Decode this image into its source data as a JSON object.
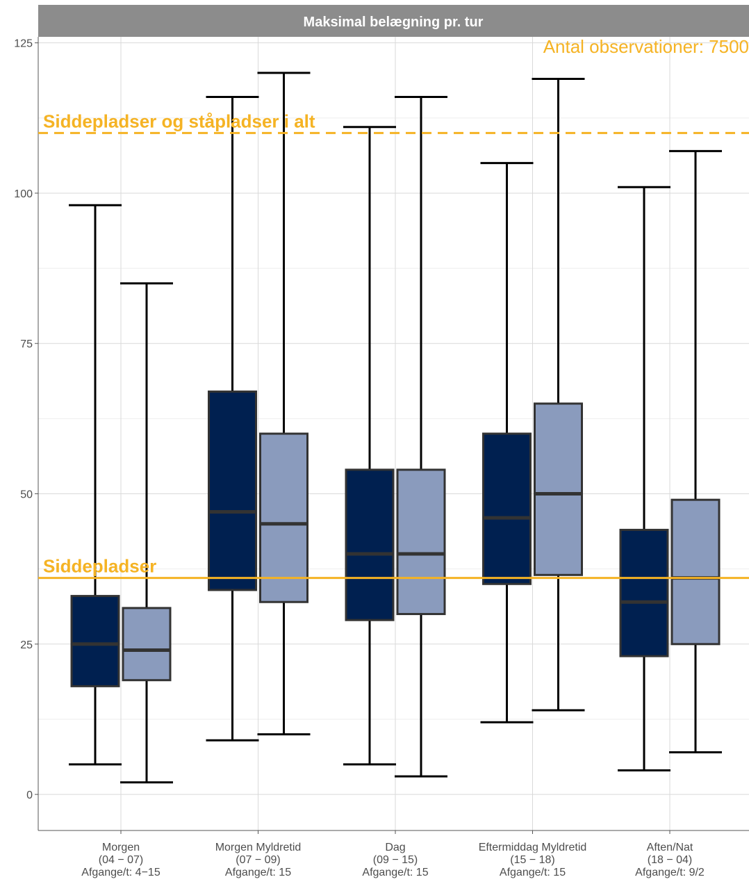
{
  "chart_data": {
    "type": "boxplot",
    "title": "Maksimal belægning pr. tur",
    "annotation": "Antal observationer: 7500",
    "ylim": [
      -6,
      126
    ],
    "y_ticks": [
      0,
      25,
      50,
      75,
      100,
      125
    ],
    "grid": true,
    "categories": [
      {
        "lines": [
          "Morgen",
          "(04 − 07)",
          "Afgange/t: 4−15"
        ]
      },
      {
        "lines": [
          "Morgen Myldretid",
          "(07 − 09)",
          "Afgange/t: 15"
        ]
      },
      {
        "lines": [
          "Dag",
          "(09 − 15)",
          "Afgange/t: 15"
        ]
      },
      {
        "lines": [
          "Eftermiddag Myldretid",
          "(15 − 18)",
          "Afgange/t: 15"
        ]
      },
      {
        "lines": [
          "Aften/Nat",
          "(18 − 04)",
          "Afgange/t: 9/2"
        ]
      }
    ],
    "series": [
      {
        "color": "#002050",
        "boxes": [
          {
            "min": 5,
            "q1": 18,
            "median": 25,
            "q3": 33,
            "max": 98
          },
          {
            "min": 9,
            "q1": 34,
            "median": 47,
            "q3": 67,
            "max": 116
          },
          {
            "min": 5,
            "q1": 29,
            "median": 40,
            "q3": 54,
            "max": 111
          },
          {
            "min": 12,
            "q1": 35,
            "median": 46,
            "q3": 60,
            "max": 105
          },
          {
            "min": 4,
            "q1": 23,
            "median": 32,
            "q3": 44,
            "max": 101
          }
        ]
      },
      {
        "color": "#8a9bbd",
        "boxes": [
          {
            "min": 2,
            "q1": 19,
            "median": 24,
            "q3": 31,
            "max": 85
          },
          {
            "min": 10,
            "q1": 32,
            "median": 45,
            "q3": 60,
            "max": 120
          },
          {
            "min": 3,
            "q1": 30,
            "median": 40,
            "q3": 54,
            "max": 116
          },
          {
            "min": 14,
            "q1": 36.5,
            "median": 50,
            "q3": 65,
            "max": 119
          },
          {
            "min": 7,
            "q1": 25,
            "median": 36,
            "q3": 49,
            "max": 107
          }
        ]
      }
    ],
    "reference_lines": [
      {
        "label": "Siddepladser og ståpladser i alt",
        "value": 110,
        "style": "dashed",
        "color": "#f5b324"
      },
      {
        "label": "Siddepladser",
        "value": 36,
        "style": "solid",
        "color": "#f5b324"
      }
    ],
    "colors": {
      "strip": "#8c8c8c",
      "grid": "#d9d9d9",
      "whisker": "#000000",
      "box_border": "#333333",
      "accent": "#f5b324"
    }
  }
}
